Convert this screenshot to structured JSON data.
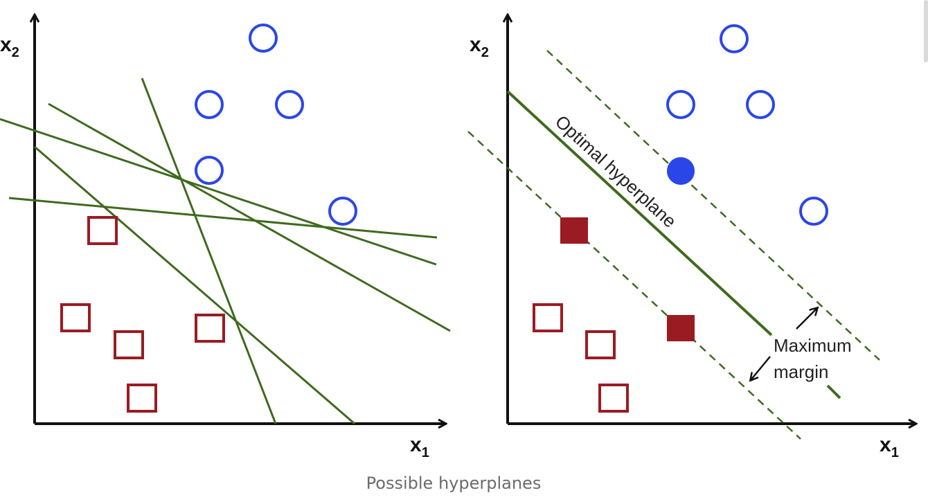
{
  "caption": "Possible hyperplanes",
  "left_panel": {
    "axis_x": "x",
    "axis_x_sub": "1",
    "axis_y": "x",
    "axis_y_sub": "2"
  },
  "right_panel": {
    "axis_x": "x",
    "axis_x_sub": "1",
    "axis_y": "x",
    "axis_y_sub": "2",
    "hyperplane_label": "Optimal hyperplane",
    "margin_label_line1": "Maximum",
    "margin_label_line2": "margin"
  },
  "colors": {
    "blue_class": "#2b46e8",
    "red_class": "#9b1b22",
    "line": "#3f6a1e",
    "axis": "#111111"
  }
}
